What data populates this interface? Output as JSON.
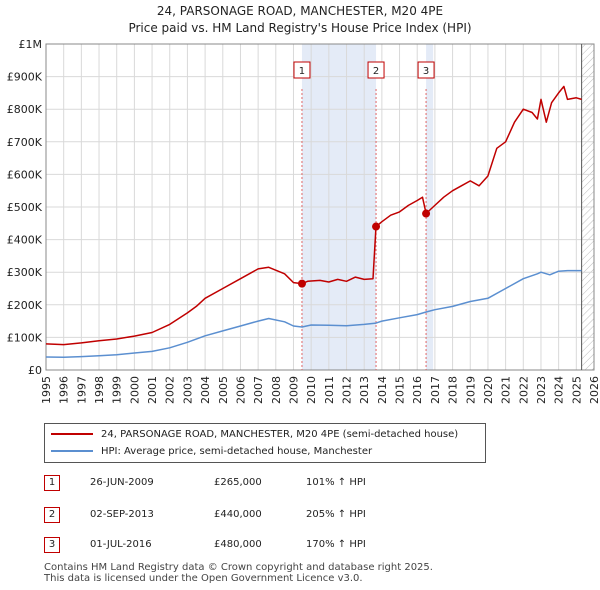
{
  "chart_data": {
    "type": "line",
    "title": "24, PARSONAGE ROAD, MANCHESTER, M20 4PE",
    "subtitle": "Price paid vs. HM Land Registry's House Price Index (HPI)",
    "x_ticks": [
      "1995",
      "1996",
      "1997",
      "1998",
      "1999",
      "2000",
      "2001",
      "2002",
      "2003",
      "2004",
      "2005",
      "2006",
      "2007",
      "2008",
      "2009",
      "2010",
      "2011",
      "2012",
      "2013",
      "2014",
      "2015",
      "2016",
      "2017",
      "2018",
      "2019",
      "2020",
      "2021",
      "2022",
      "2023",
      "2024",
      "2025",
      "2026"
    ],
    "xlim": [
      1995,
      2026
    ],
    "y_ticks": [
      {
        "value": 0,
        "label": "£0"
      },
      {
        "value": 100000,
        "label": "£100K"
      },
      {
        "value": 200000,
        "label": "£200K"
      },
      {
        "value": 300000,
        "label": "£300K"
      },
      {
        "value": 400000,
        "label": "£400K"
      },
      {
        "value": 500000,
        "label": "£500K"
      },
      {
        "value": 600000,
        "label": "£600K"
      },
      {
        "value": 700000,
        "label": "£700K"
      },
      {
        "value": 800000,
        "label": "£800K"
      },
      {
        "value": 900000,
        "label": "£900K"
      },
      {
        "value": 1000000,
        "label": "£1M"
      }
    ],
    "ylim": [
      0,
      1000000
    ],
    "grid": true,
    "shaded_ranges": [
      [
        2009.48,
        2013.67
      ],
      [
        2016.5,
        2016.9
      ]
    ],
    "future_from": 2025.3,
    "series": [
      {
        "name": "24, PARSONAGE ROAD, MANCHESTER, M20 4PE (semi-detached house)",
        "color": "#c00000",
        "points": [
          [
            1995.0,
            80000
          ],
          [
            1996.0,
            78000
          ],
          [
            1997.0,
            83000
          ],
          [
            1998.0,
            90000
          ],
          [
            1999.0,
            95000
          ],
          [
            2000.0,
            104000
          ],
          [
            2001.0,
            115000
          ],
          [
            2002.0,
            140000
          ],
          [
            2003.0,
            175000
          ],
          [
            2003.5,
            195000
          ],
          [
            2004.0,
            220000
          ],
          [
            2005.0,
            250000
          ],
          [
            2006.0,
            280000
          ],
          [
            2007.0,
            310000
          ],
          [
            2007.6,
            315000
          ],
          [
            2008.5,
            295000
          ],
          [
            2009.0,
            268000
          ],
          [
            2009.48,
            265000
          ],
          [
            2009.8,
            272000
          ],
          [
            2010.5,
            275000
          ],
          [
            2011.0,
            270000
          ],
          [
            2011.5,
            278000
          ],
          [
            2012.0,
            272000
          ],
          [
            2012.5,
            285000
          ],
          [
            2013.0,
            278000
          ],
          [
            2013.5,
            280000
          ],
          [
            2013.67,
            440000
          ],
          [
            2014.0,
            455000
          ],
          [
            2014.5,
            475000
          ],
          [
            2015.0,
            485000
          ],
          [
            2015.5,
            505000
          ],
          [
            2016.0,
            520000
          ],
          [
            2016.3,
            530000
          ],
          [
            2016.5,
            480000
          ],
          [
            2016.9,
            500000
          ],
          [
            2017.5,
            530000
          ],
          [
            2018.0,
            550000
          ],
          [
            2018.5,
            565000
          ],
          [
            2019.0,
            580000
          ],
          [
            2019.5,
            565000
          ],
          [
            2020.0,
            595000
          ],
          [
            2020.5,
            680000
          ],
          [
            2021.0,
            700000
          ],
          [
            2021.5,
            760000
          ],
          [
            2022.0,
            800000
          ],
          [
            2022.5,
            790000
          ],
          [
            2022.8,
            770000
          ],
          [
            2023.0,
            830000
          ],
          [
            2023.3,
            760000
          ],
          [
            2023.6,
            820000
          ],
          [
            2024.0,
            850000
          ],
          [
            2024.3,
            870000
          ],
          [
            2024.5,
            830000
          ],
          [
            2025.0,
            835000
          ],
          [
            2025.3,
            830000
          ]
        ]
      },
      {
        "name": "HPI: Average price, semi-detached house, Manchester",
        "color": "#5b8fd0",
        "points": [
          [
            1995.0,
            40000
          ],
          [
            1996.0,
            39000
          ],
          [
            1997.0,
            41000
          ],
          [
            1998.0,
            44000
          ],
          [
            1999.0,
            47000
          ],
          [
            2000.0,
            52000
          ],
          [
            2001.0,
            57000
          ],
          [
            2002.0,
            68000
          ],
          [
            2003.0,
            85000
          ],
          [
            2004.0,
            105000
          ],
          [
            2005.0,
            120000
          ],
          [
            2006.0,
            135000
          ],
          [
            2007.0,
            150000
          ],
          [
            2007.6,
            158000
          ],
          [
            2008.5,
            148000
          ],
          [
            2009.0,
            135000
          ],
          [
            2009.48,
            132000
          ],
          [
            2010.0,
            138000
          ],
          [
            2011.0,
            137000
          ],
          [
            2012.0,
            136000
          ],
          [
            2013.0,
            140000
          ],
          [
            2013.67,
            144000
          ],
          [
            2014.0,
            150000
          ],
          [
            2015.0,
            160000
          ],
          [
            2016.0,
            170000
          ],
          [
            2016.5,
            178000
          ],
          [
            2017.0,
            185000
          ],
          [
            2018.0,
            195000
          ],
          [
            2019.0,
            210000
          ],
          [
            2020.0,
            220000
          ],
          [
            2021.0,
            250000
          ],
          [
            2022.0,
            280000
          ],
          [
            2022.8,
            295000
          ],
          [
            2023.0,
            300000
          ],
          [
            2023.5,
            292000
          ],
          [
            2024.0,
            303000
          ],
          [
            2024.5,
            305000
          ],
          [
            2025.3,
            305000
          ]
        ]
      }
    ],
    "sales": [
      {
        "label": "1",
        "x": 2009.48,
        "price": 265000
      },
      {
        "label": "2",
        "x": 2013.67,
        "price": 440000
      },
      {
        "label": "3",
        "x": 2016.5,
        "price": 480000
      }
    ]
  },
  "legend": {
    "property_label": "24, PARSONAGE ROAD, MANCHESTER, M20 4PE (semi-detached house)",
    "hpi_label": "HPI: Average price, semi-detached house, Manchester"
  },
  "sales_table": [
    {
      "num": "1",
      "date": "26-JUN-2009",
      "price": "£265,000",
      "hpi": "101% ↑ HPI"
    },
    {
      "num": "2",
      "date": "02-SEP-2013",
      "price": "£440,000",
      "hpi": "205% ↑ HPI"
    },
    {
      "num": "3",
      "date": "01-JUL-2016",
      "price": "£480,000",
      "hpi": "170% ↑ HPI"
    }
  ],
  "footer": {
    "line1": "Contains HM Land Registry data © Crown copyright and database right 2025.",
    "line2": "This data is licensed under the Open Government Licence v3.0."
  }
}
